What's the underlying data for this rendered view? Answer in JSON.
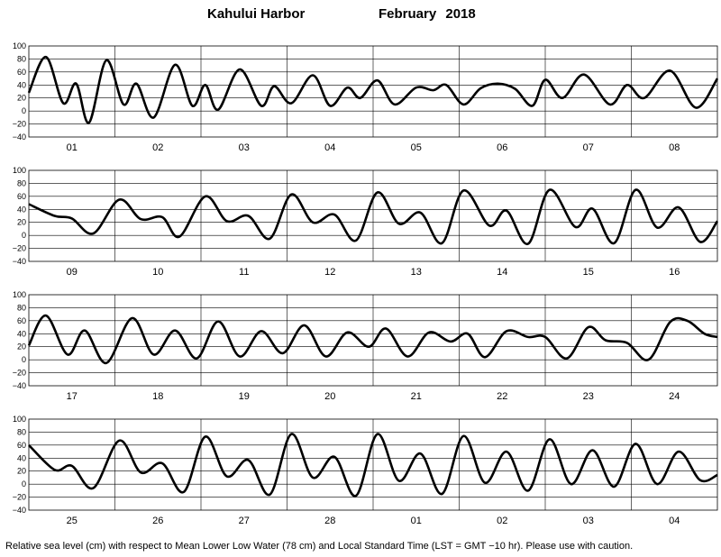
{
  "title": {
    "location": "Kahului Harbor",
    "period": "February   2018"
  },
  "footer": "Relative sea level (cm) with respect to Mean Lower Low Water (78 cm) and Local Standard Time (LST = GMT −10 hr). Please use with caution.",
  "chart_data": [
    {
      "type": "line",
      "ylim": [
        -40,
        100
      ],
      "yticks": [
        "100",
        "80",
        "60",
        "40",
        "20",
        "0",
        "−20",
        "−40"
      ],
      "day_labels": [
        "01",
        "02",
        "03",
        "04",
        "05",
        "06",
        "07",
        "08"
      ],
      "series": [
        {
          "x_unit": "days from start of 01 (0-8)",
          "x": [
            0,
            0.2,
            0.4,
            0.55,
            0.7,
            0.9,
            1.1,
            1.25,
            1.45,
            1.7,
            1.9,
            2.05,
            2.2,
            2.45,
            2.7,
            2.85,
            3.05,
            3.3,
            3.5,
            3.7,
            3.85,
            4.05,
            4.25,
            4.5,
            4.7,
            4.85,
            5.05,
            5.25,
            5.45,
            5.65,
            5.85,
            6.0,
            6.2,
            6.45,
            6.75,
            6.95,
            7.15,
            7.45,
            7.75,
            8.0
          ],
          "values": [
            28,
            83,
            12,
            42,
            -18,
            78,
            10,
            42,
            -10,
            71,
            8,
            40,
            2,
            64,
            8,
            38,
            12,
            55,
            8,
            36,
            20,
            47,
            10,
            36,
            32,
            40,
            10,
            35,
            42,
            34,
            8,
            48,
            20,
            56,
            10,
            40,
            20,
            62,
            5,
            50
          ]
        }
      ]
    },
    {
      "type": "line",
      "ylim": [
        -40,
        100
      ],
      "yticks": [
        "100",
        "80",
        "60",
        "40",
        "20",
        "0",
        "−20",
        "−40"
      ],
      "day_labels": [
        "09",
        "10",
        "11",
        "12",
        "13",
        "14",
        "15",
        "16"
      ],
      "series": [
        {
          "x_unit": "days from start of 09 (0-8)",
          "x": [
            0,
            0.3,
            0.5,
            0.75,
            1.05,
            1.3,
            1.55,
            1.75,
            2.05,
            2.3,
            2.55,
            2.8,
            3.05,
            3.3,
            3.55,
            3.8,
            4.05,
            4.3,
            4.55,
            4.8,
            5.05,
            5.35,
            5.55,
            5.8,
            6.05,
            6.35,
            6.55,
            6.8,
            7.05,
            7.3,
            7.55,
            7.8,
            8.0
          ],
          "values": [
            48,
            30,
            26,
            3,
            55,
            25,
            28,
            -2,
            60,
            22,
            30,
            -5,
            63,
            20,
            32,
            -8,
            66,
            18,
            35,
            -12,
            69,
            15,
            38,
            -13,
            70,
            13,
            41,
            -12,
            70,
            12,
            43,
            -10,
            22
          ]
        }
      ]
    },
    {
      "type": "line",
      "ylim": [
        -40,
        100
      ],
      "yticks": [
        "100",
        "80",
        "60",
        "40",
        "20",
        "0",
        "−20",
        "−40"
      ],
      "day_labels": [
        "17",
        "18",
        "19",
        "20",
        "21",
        "22",
        "23",
        "24"
      ],
      "series": [
        {
          "x_unit": "days from start of 17 (0-8)",
          "x": [
            0,
            0.2,
            0.45,
            0.65,
            0.9,
            1.2,
            1.45,
            1.7,
            1.95,
            2.2,
            2.45,
            2.7,
            2.95,
            3.2,
            3.45,
            3.7,
            3.95,
            4.15,
            4.4,
            4.65,
            4.9,
            5.1,
            5.3,
            5.55,
            5.8,
            6.0,
            6.25,
            6.5,
            6.7,
            6.95,
            7.2,
            7.45,
            7.65,
            7.85,
            8.0
          ],
          "values": [
            22,
            68,
            8,
            45,
            -5,
            64,
            8,
            45,
            2,
            59,
            5,
            44,
            10,
            53,
            5,
            42,
            20,
            48,
            5,
            42,
            28,
            40,
            4,
            44,
            35,
            35,
            2,
            50,
            30,
            26,
            0,
            58,
            60,
            40,
            35
          ]
        }
      ]
    },
    {
      "type": "line",
      "ylim": [
        -40,
        100
      ],
      "yticks": [
        "100",
        "80",
        "60",
        "40",
        "20",
        "0",
        "−20",
        "−40"
      ],
      "day_labels": [
        "25",
        "26",
        "27",
        "28",
        "01",
        "02",
        "03",
        "04"
      ],
      "series": [
        {
          "x_unit": "days from start of 25 (0-8)",
          "x": [
            0,
            0.3,
            0.5,
            0.75,
            1.05,
            1.3,
            1.55,
            1.8,
            2.05,
            2.3,
            2.55,
            2.8,
            3.05,
            3.3,
            3.55,
            3.8,
            4.05,
            4.3,
            4.55,
            4.8,
            5.05,
            5.3,
            5.55,
            5.8,
            6.05,
            6.3,
            6.55,
            6.8,
            7.05,
            7.3,
            7.55,
            7.8,
            8.0
          ],
          "values": [
            60,
            22,
            28,
            -6,
            67,
            18,
            32,
            -12,
            73,
            12,
            37,
            -16,
            77,
            10,
            42,
            -18,
            77,
            5,
            47,
            -15,
            74,
            2,
            50,
            -10,
            69,
            0,
            52,
            -4,
            62,
            0,
            50,
            6,
            14
          ]
        }
      ]
    }
  ]
}
